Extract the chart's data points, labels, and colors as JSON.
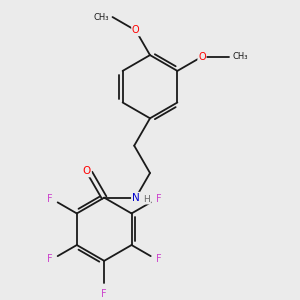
{
  "background_color": "#ebebeb",
  "bond_color": "#1a1a1a",
  "bond_lw": 1.3,
  "figsize": [
    3.0,
    3.0
  ],
  "dpi": 100,
  "O_color": "#ff0000",
  "N_color": "#0000cc",
  "F_color": "#cc44cc",
  "H_color": "#666666",
  "C_color": "#1a1a1a",
  "font_size": 6.5,
  "xlim": [
    -2.5,
    4.5
  ],
  "ylim": [
    -5.5,
    3.5
  ]
}
